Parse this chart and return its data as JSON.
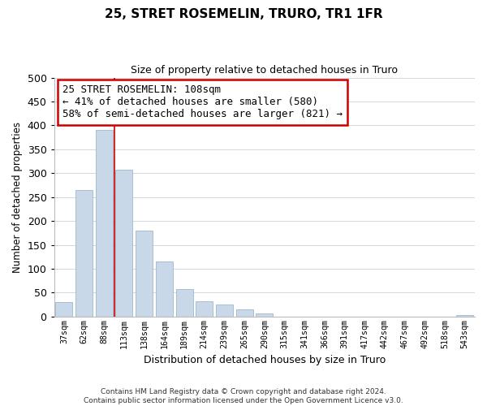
{
  "title": "25, STRET ROSEMELIN, TRURO, TR1 1FR",
  "subtitle": "Size of property relative to detached houses in Truro",
  "xlabel": "Distribution of detached houses by size in Truro",
  "ylabel": "Number of detached properties",
  "bar_labels": [
    "37sqm",
    "62sqm",
    "88sqm",
    "113sqm",
    "138sqm",
    "164sqm",
    "189sqm",
    "214sqm",
    "239sqm",
    "265sqm",
    "290sqm",
    "315sqm",
    "341sqm",
    "366sqm",
    "391sqm",
    "417sqm",
    "442sqm",
    "467sqm",
    "492sqm",
    "518sqm",
    "543sqm"
  ],
  "bar_values": [
    30,
    265,
    390,
    308,
    180,
    115,
    58,
    32,
    26,
    15,
    7,
    0,
    0,
    0,
    0,
    0,
    0,
    0,
    0,
    0,
    3
  ],
  "bar_color": "#c8d8e8",
  "bar_edge_color": "#a0b8cc",
  "ylim": [
    0,
    500
  ],
  "yticks": [
    0,
    50,
    100,
    150,
    200,
    250,
    300,
    350,
    400,
    450,
    500
  ],
  "property_line_color": "#cc0000",
  "annotation_title": "25 STRET ROSEMELIN: 108sqm",
  "annotation_line1": "← 41% of detached houses are smaller (580)",
  "annotation_line2": "58% of semi-detached houses are larger (821) →",
  "annotation_box_color": "#ffffff",
  "annotation_box_edge": "#cc0000",
  "footer_line1": "Contains HM Land Registry data © Crown copyright and database right 2024.",
  "footer_line2": "Contains public sector information licensed under the Open Government Licence v3.0.",
  "background_color": "#ffffff",
  "grid_color": "#d0d8e0"
}
